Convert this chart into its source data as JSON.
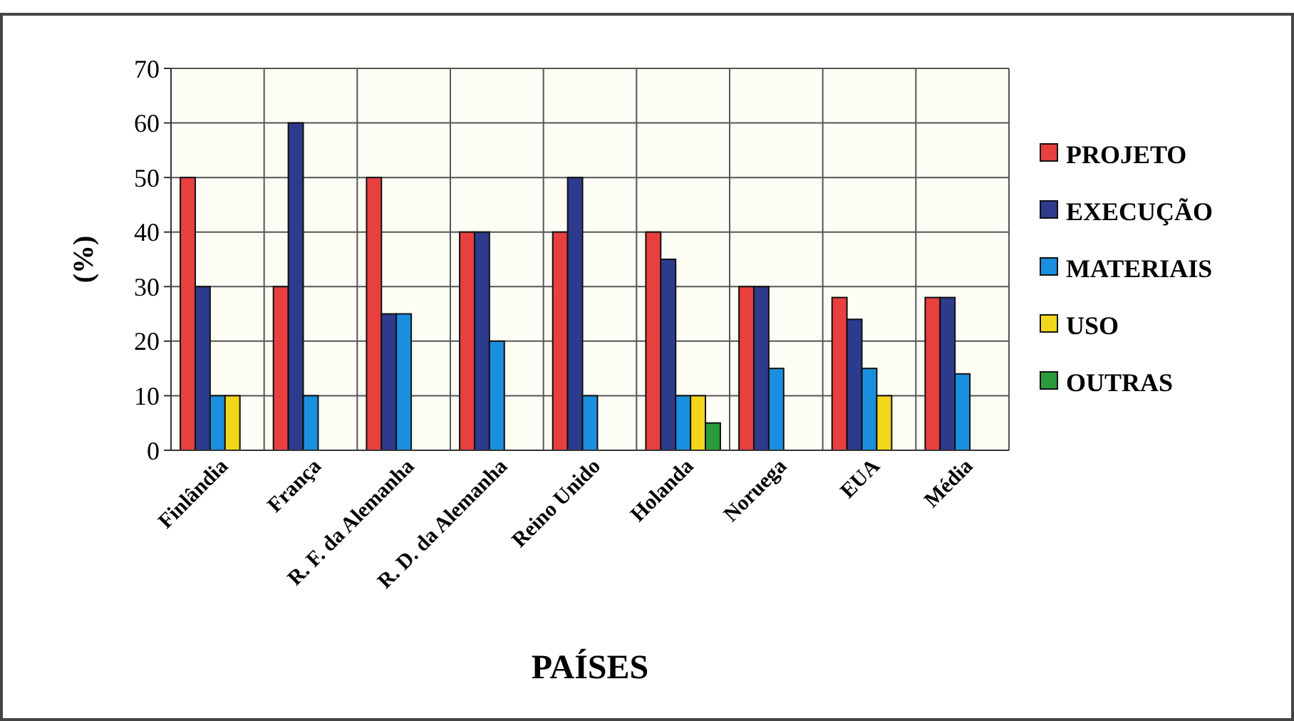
{
  "chart_data": {
    "type": "bar",
    "xlabel": "PAÍSES",
    "ylabel": "(%)",
    "categories": [
      "Finlândia",
      "França",
      "R. F. da Alemanha",
      "R. D. da Alemanha",
      "Reino Unido",
      "Holanda",
      "Noruega",
      "EUA",
      "Média"
    ],
    "series": [
      {
        "name": "PROJETO",
        "color": "#e8403f",
        "values": [
          50,
          30,
          50,
          40,
          40,
          40,
          30,
          28,
          28
        ]
      },
      {
        "name": "EXECUÇÃO",
        "color": "#2e3a8c",
        "values": [
          30,
          60,
          25,
          40,
          50,
          35,
          30,
          24,
          28
        ]
      },
      {
        "name": "MATERIAIS",
        "color": "#1a8fe0",
        "values": [
          10,
          10,
          25,
          20,
          10,
          10,
          15,
          15,
          14
        ]
      },
      {
        "name": "USO",
        "color": "#f2d61c",
        "values": [
          10,
          null,
          null,
          null,
          null,
          10,
          null,
          10,
          null
        ]
      },
      {
        "name": "OUTRAS",
        "color": "#2a9a3a",
        "values": [
          null,
          null,
          null,
          null,
          null,
          5,
          null,
          null,
          null
        ]
      }
    ],
    "ylim": [
      0,
      70
    ],
    "yticks": [
      0,
      10,
      20,
      30,
      40,
      50,
      60,
      70
    ],
    "grid": true,
    "legend": "right"
  }
}
